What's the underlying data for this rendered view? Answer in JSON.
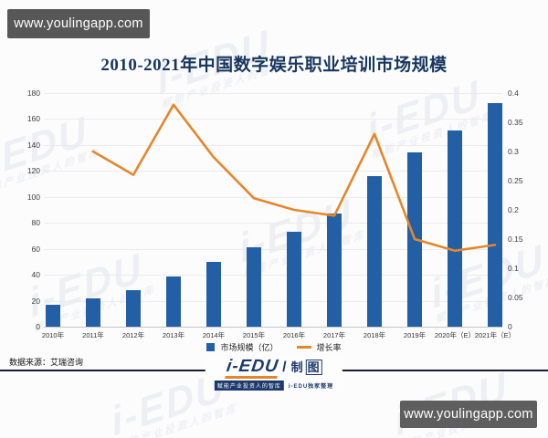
{
  "badges": {
    "top_left": "www.youlingapp.com",
    "bottom_right": "www.youlingapp.com"
  },
  "title": "2010-2021年中国数字娱乐职业培训市场规模",
  "chart_data": {
    "type": "bar",
    "title": "2010-2021年中国数字娱乐职业培训市场规模",
    "categories": [
      "2010年",
      "2011年",
      "2012年",
      "2013年",
      "2014年",
      "2015年",
      "2016年",
      "2017年",
      "2018年",
      "2019年",
      "2020年（E）",
      "2021年（E）"
    ],
    "series": [
      {
        "name": "市场规模（亿）",
        "type": "bar",
        "axis": "left",
        "color": "#235fa5",
        "values": [
          17,
          22,
          28,
          39,
          50,
          61,
          73,
          87,
          116,
          134,
          151,
          172
        ]
      },
      {
        "name": "增长率",
        "type": "line",
        "axis": "right",
        "color": "#e6862a",
        "values": [
          null,
          0.3,
          0.26,
          0.38,
          0.29,
          0.22,
          0.2,
          0.19,
          0.33,
          0.15,
          0.13,
          0.14
        ]
      }
    ],
    "left_axis": {
      "min": 0,
      "max": 180,
      "step": 20,
      "ticks": [
        "0",
        "20",
        "40",
        "60",
        "80",
        "100",
        "120",
        "140",
        "160",
        "180"
      ]
    },
    "right_axis": {
      "min": 0,
      "max": 0.4,
      "step": 0.05,
      "ticks": [
        "0",
        "0.05",
        "0.1",
        "0.15",
        "0.2",
        "0.25",
        "0.3",
        "0.35",
        "0.4"
      ]
    },
    "grid": true,
    "legend_position": "bottom"
  },
  "legend": {
    "bar_label": "市场规模（亿）",
    "line_label": "增长率"
  },
  "source_note": "数据来源：艾瑞咨询",
  "footer_logo": {
    "main": "i-EDU",
    "separator": "/",
    "right_char": "制",
    "right_boxed": "图",
    "tagline_left": "赋能产业投资人的智库",
    "tagline_right": "i-EDU独家整理"
  },
  "watermark": {
    "line1": "i-EDU",
    "line2": "赋能产业投资人的智库"
  },
  "colors": {
    "bar": "#235fa5",
    "line": "#e6862a",
    "title": "#17375e",
    "badge_bg": "#575757"
  }
}
